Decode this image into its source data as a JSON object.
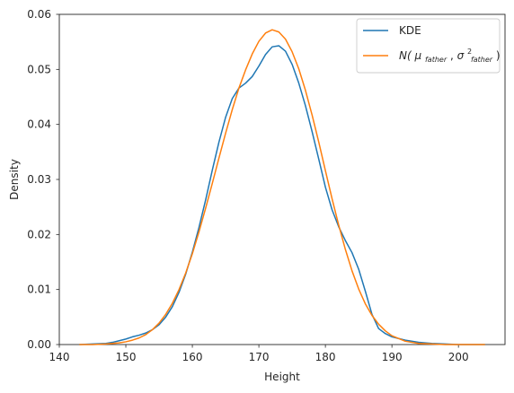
{
  "chart_data": {
    "type": "line",
    "title": "",
    "xlabel": "Height",
    "ylabel": "Density",
    "xlim": [
      140,
      207
    ],
    "ylim": [
      0,
      0.06
    ],
    "xticks": [
      140,
      150,
      160,
      170,
      180,
      190,
      200
    ],
    "xtick_labels": [
      "140",
      "150",
      "160",
      "170",
      "180",
      "190",
      "200"
    ],
    "yticks": [
      0,
      0.01,
      0.02,
      0.03,
      0.04,
      0.05,
      0.06
    ],
    "ytick_labels": [
      "0.00",
      "0.01",
      "0.02",
      "0.03",
      "0.04",
      "0.05",
      "0.06"
    ],
    "grid": false,
    "legend_position": "top-right",
    "series": [
      {
        "name": "KDE",
        "color": "#1f77b4",
        "x": [
          143,
          145,
          147,
          148,
          149,
          150,
          151,
          152,
          153,
          154,
          155,
          156,
          157,
          158,
          159,
          160,
          161,
          162,
          163,
          164,
          165,
          166,
          167,
          168,
          169,
          170,
          171,
          172,
          173,
          174,
          175,
          176,
          177,
          178,
          179,
          180,
          181,
          182,
          183,
          184,
          185,
          186,
          187,
          188,
          189,
          190,
          192,
          194,
          196,
          198,
          200,
          202,
          204
        ],
        "y": [
          0.0,
          0.0001,
          0.0002,
          0.0004,
          0.0007,
          0.001,
          0.0014,
          0.0017,
          0.0021,
          0.0027,
          0.0036,
          0.005,
          0.0069,
          0.0095,
          0.0128,
          0.0168,
          0.0213,
          0.0263,
          0.0317,
          0.0368,
          0.0413,
          0.0447,
          0.0466,
          0.0475,
          0.0487,
          0.0506,
          0.0527,
          0.0541,
          0.0543,
          0.0533,
          0.0509,
          0.0475,
          0.0434,
          0.0387,
          0.0337,
          0.0286,
          0.0245,
          0.0214,
          0.0189,
          0.0167,
          0.0137,
          0.0097,
          0.0055,
          0.0029,
          0.002,
          0.0014,
          0.0008,
          0.0004,
          0.0002,
          0.0001,
          0.0,
          0.0,
          0.0
        ]
      },
      {
        "name": "N(μ_father, σ²_father)",
        "color": "#ff7f0e",
        "x": [
          143,
          145,
          147,
          148,
          149,
          150,
          151,
          152,
          153,
          154,
          155,
          156,
          157,
          158,
          159,
          160,
          161,
          162,
          163,
          164,
          165,
          166,
          167,
          168,
          169,
          170,
          171,
          172,
          173,
          174,
          175,
          176,
          177,
          178,
          179,
          180,
          181,
          182,
          183,
          184,
          185,
          186,
          187,
          188,
          189,
          190,
          192,
          194,
          196,
          198,
          200,
          202,
          204
        ],
        "y": [
          0.0,
          0.0,
          0.0001,
          0.0002,
          0.0003,
          0.0005,
          0.0008,
          0.0012,
          0.0018,
          0.0027,
          0.0039,
          0.0055,
          0.0075,
          0.01,
          0.013,
          0.0165,
          0.0205,
          0.0248,
          0.0293,
          0.0339,
          0.0384,
          0.0427,
          0.0466,
          0.0499,
          0.0528,
          0.0551,
          0.0566,
          0.0572,
          0.0568,
          0.0555,
          0.0532,
          0.0501,
          0.0462,
          0.0417,
          0.0368,
          0.0316,
          0.0265,
          0.0217,
          0.0173,
          0.0134,
          0.0101,
          0.0074,
          0.0053,
          0.0037,
          0.0025,
          0.0016,
          0.0006,
          0.0002,
          0.0001,
          0.0,
          0.0,
          0.0,
          0.0
        ]
      }
    ],
    "legend": {
      "kde_label": "KDE",
      "normal_label": {
        "main": "N(",
        "mu": "μ",
        "mu_sub": "father",
        "sep": ", ",
        "sigma": "σ",
        "sigma_sup": "2",
        "sigma_sub": "father",
        "close": ")"
      }
    }
  }
}
